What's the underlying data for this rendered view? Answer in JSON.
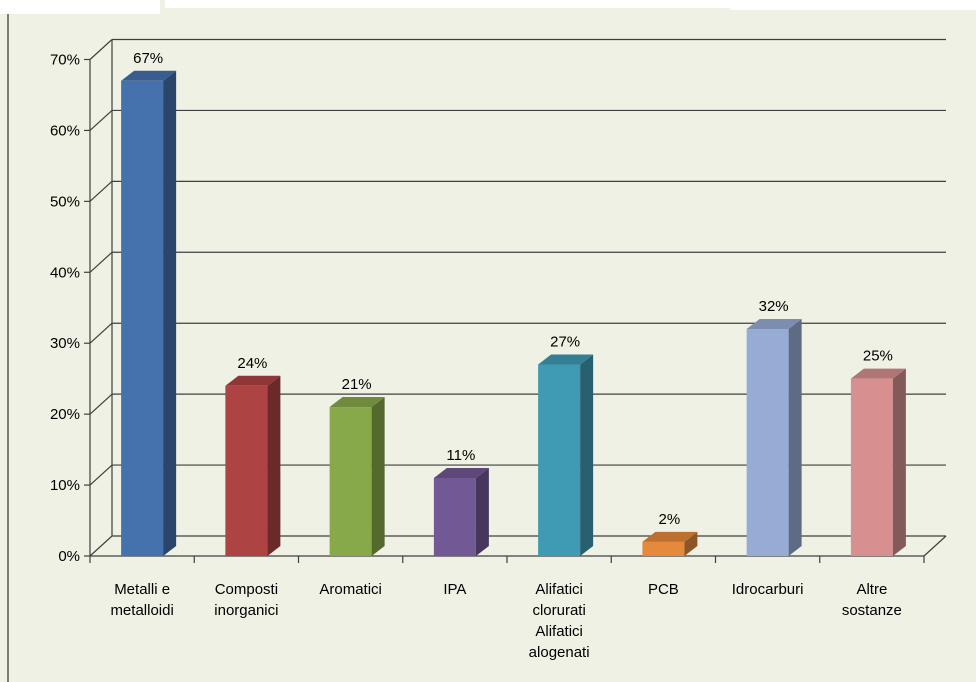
{
  "chart_data": {
    "type": "bar",
    "title": "",
    "xlabel": "",
    "ylabel": "",
    "categories": [
      [
        "Metalli e",
        "metalloidi"
      ],
      [
        "Composti",
        "inorganici"
      ],
      [
        "Aromatici"
      ],
      [
        "IPA"
      ],
      [
        "Alifatici",
        "clorurati",
        "Alifatici",
        "alogenati"
      ],
      [
        "PCB"
      ],
      [
        "Idrocarburi"
      ],
      [
        "Altre",
        "sostanze"
      ]
    ],
    "values": [
      67,
      24,
      21,
      11,
      27,
      2,
      32,
      25
    ],
    "data_labels": [
      "67%",
      "24%",
      "21%",
      "11%",
      "27%",
      "2%",
      "32%",
      "25%"
    ],
    "colors": [
      "#4571ad",
      "#ad4342",
      "#88a94a",
      "#725894",
      "#3f9bb4",
      "#e58a3c",
      "#97acd5",
      "#d78f8f"
    ],
    "ylim": [
      0,
      70
    ],
    "yticks": [
      "0%",
      "10%",
      "20%",
      "30%",
      "40%",
      "50%",
      "60%",
      "70%"
    ],
    "grid": true,
    "background": "#eef1e3",
    "legend": "none"
  }
}
